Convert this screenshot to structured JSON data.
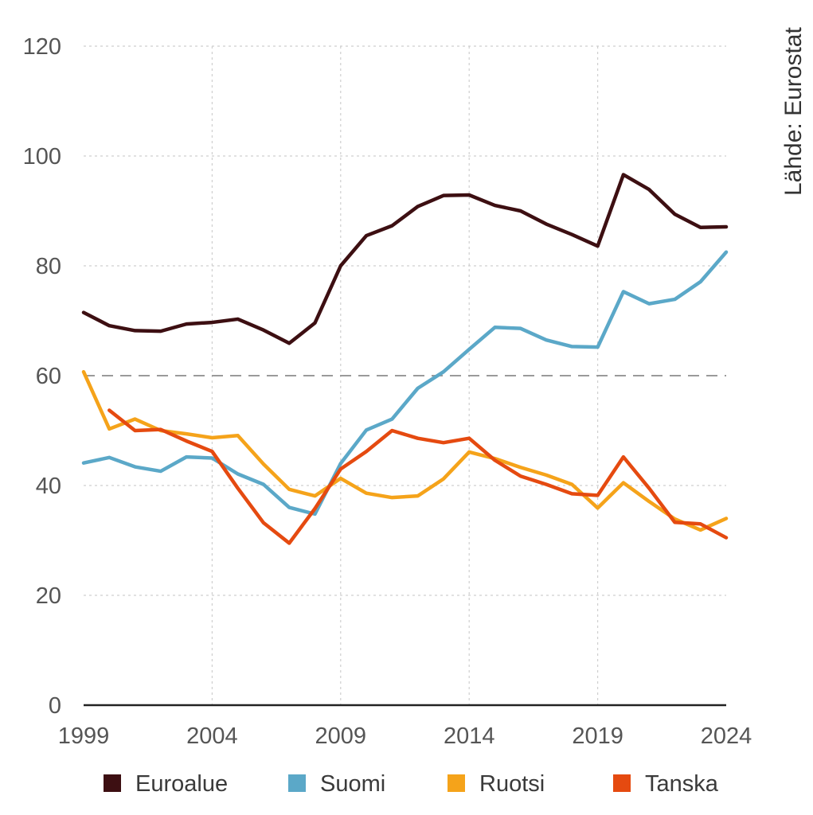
{
  "chart_data": {
    "type": "line",
    "title": "",
    "xlabel": "",
    "ylabel": "",
    "source": "Lähde: Eurostat",
    "x": [
      1999,
      2000,
      2001,
      2002,
      2003,
      2004,
      2005,
      2006,
      2007,
      2008,
      2009,
      2010,
      2011,
      2012,
      2013,
      2014,
      2015,
      2016,
      2017,
      2018,
      2019,
      2020,
      2021,
      2022,
      2023,
      2024
    ],
    "xticks": [
      "1999",
      "2004",
      "2009",
      "2014",
      "2019",
      "2024"
    ],
    "yticks": [
      "0",
      "20",
      "40",
      "60",
      "80",
      "100",
      "120"
    ],
    "ylim": [
      0,
      120
    ],
    "reference_line": 60,
    "series": [
      {
        "name": "Euroalue",
        "color": "#3d0f12",
        "values": [
          71.5,
          69.1,
          68.2,
          68.1,
          69.4,
          69.7,
          70.3,
          68.3,
          65.9,
          69.6,
          80.0,
          85.5,
          87.3,
          90.8,
          92.8,
          92.9,
          91.0,
          90.0,
          87.6,
          85.7,
          83.6,
          96.6,
          93.9,
          89.4,
          87.0,
          87.1
        ]
      },
      {
        "name": "Suomi",
        "color": "#5ba8c8",
        "values": [
          44.1,
          45.1,
          43.4,
          42.6,
          45.2,
          45.0,
          42.1,
          40.2,
          36.0,
          34.8,
          44.0,
          50.1,
          52.1,
          57.7,
          60.7,
          64.8,
          68.8,
          68.6,
          66.5,
          65.3,
          65.2,
          75.3,
          73.1,
          73.9,
          77.1,
          82.5
        ]
      },
      {
        "name": "Ruotsi",
        "color": "#f5a31a",
        "values": [
          60.7,
          50.3,
          52.1,
          50.0,
          49.4,
          48.7,
          49.1,
          43.9,
          39.3,
          38.1,
          41.3,
          38.6,
          37.8,
          38.1,
          41.2,
          46.1,
          44.9,
          43.3,
          41.9,
          40.2,
          35.9,
          40.5,
          37.1,
          33.9,
          31.9,
          34.0
        ]
      },
      {
        "name": "Tanska",
        "color": "#e54a10",
        "values": [
          null,
          53.7,
          50.0,
          50.2,
          48.1,
          46.2,
          39.5,
          33.2,
          29.5,
          35.8,
          43.0,
          46.2,
          50.0,
          48.6,
          47.8,
          48.6,
          44.6,
          41.7,
          40.2,
          38.5,
          38.2,
          45.2,
          39.5,
          33.3,
          33.0,
          30.5
        ]
      }
    ]
  }
}
